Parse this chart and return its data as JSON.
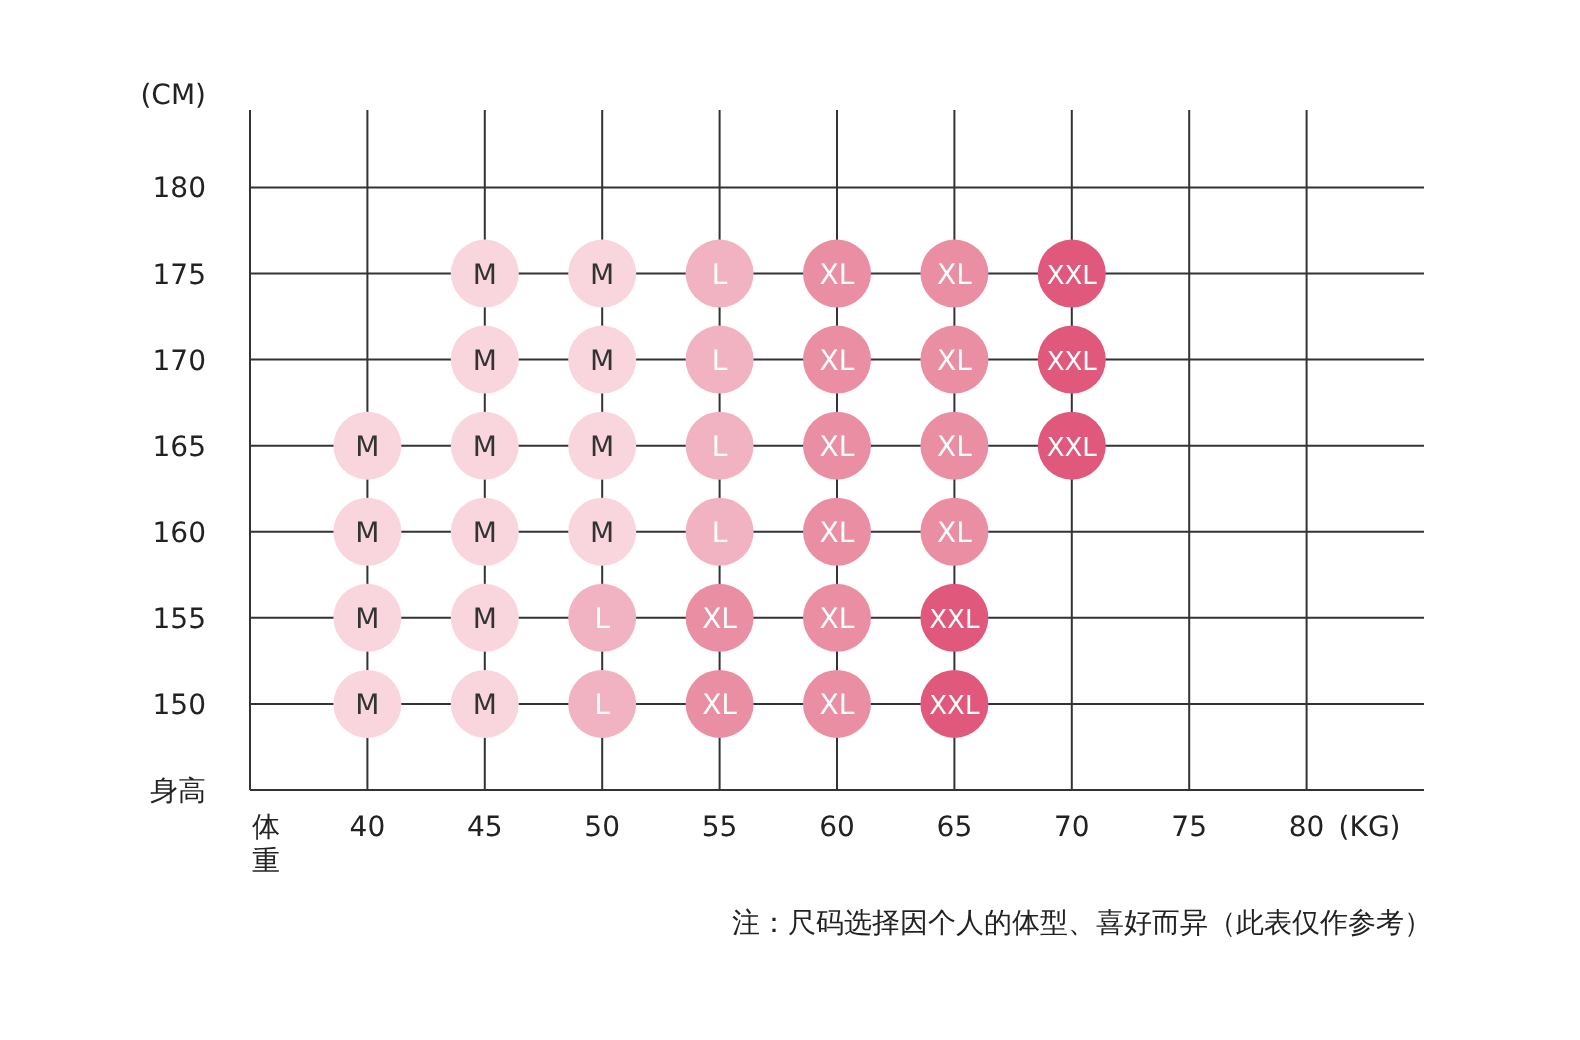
{
  "chart_data": {
    "type": "scatter",
    "xlabel": "(KG)",
    "ylabel": "(CM)",
    "xlim": [
      35,
      85
    ],
    "ylim": [
      145,
      184.5
    ],
    "xticks": [
      {
        "value": 35,
        "label": "体重"
      },
      40,
      45,
      50,
      55,
      60,
      65,
      70,
      75,
      80
    ],
    "yticks": [
      {
        "value": 145,
        "label": "身高"
      },
      150,
      155,
      160,
      165,
      170,
      175,
      180
    ],
    "grid": true,
    "legend": false,
    "marker": "circle",
    "series": [
      {
        "name": "M",
        "color": "#f9d6dd",
        "x": [
          45,
          50,
          45,
          50,
          40,
          45,
          50,
          40,
          45,
          50,
          40,
          45,
          40,
          45
        ],
        "values": [
          175,
          175,
          170,
          170,
          165,
          165,
          165,
          160,
          160,
          160,
          155,
          155,
          150,
          150
        ]
      },
      {
        "name": "L",
        "color": "#f1b3c1",
        "x": [
          55,
          55,
          55,
          55,
          50,
          50
        ],
        "values": [
          175,
          170,
          165,
          160,
          155,
          150
        ]
      },
      {
        "name": "XL",
        "color": "#ea8ea3",
        "x": [
          60,
          65,
          60,
          65,
          60,
          65,
          60,
          65,
          55,
          60,
          55,
          60
        ],
        "values": [
          175,
          175,
          170,
          170,
          165,
          165,
          160,
          160,
          155,
          155,
          150,
          150
        ]
      },
      {
        "name": "XXL",
        "color": "#e0587b",
        "x": [
          70,
          70,
          70,
          65,
          65
        ],
        "values": [
          175,
          170,
          165,
          155,
          150
        ]
      }
    ],
    "annotations": [
      "注：尺码选择因个人的体型、喜好而异（此表仅作参考）"
    ]
  }
}
